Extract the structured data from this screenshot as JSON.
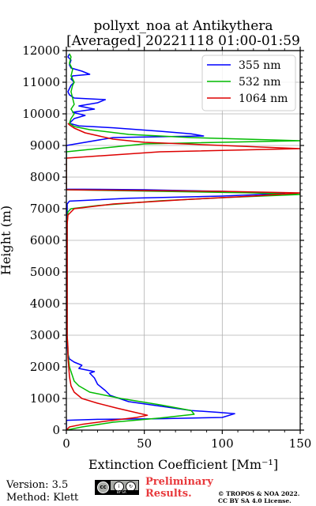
{
  "chart_data": {
    "type": "line",
    "title": "pollyxt_noa at Antikythera",
    "subtitle": "[Averaged] 20221118 01:00-01:59",
    "xlabel": "Extinction Coefficient [Mm⁻¹]",
    "ylabel": "Height (m)",
    "xlim": [
      0,
      150
    ],
    "ylim": [
      0,
      12000
    ],
    "xticks": [
      0,
      50,
      100,
      150
    ],
    "yticks": [
      0,
      1000,
      2000,
      3000,
      4000,
      5000,
      6000,
      7000,
      8000,
      9000,
      10000,
      11000,
      12000
    ],
    "grid": true,
    "legend_position": "top-right",
    "series": [
      {
        "name": "355 nm",
        "color": "#0000ff",
        "points": [
          [
            0,
            0
          ],
          [
            0,
            310
          ],
          [
            20,
            340
          ],
          [
            60,
            360
          ],
          [
            100,
            400
          ],
          [
            108,
            520
          ],
          [
            98,
            560
          ],
          [
            80,
            620
          ],
          [
            60,
            760
          ],
          [
            40,
            900
          ],
          [
            28,
            1100
          ],
          [
            25,
            1250
          ],
          [
            20,
            1450
          ],
          [
            18,
            1650
          ],
          [
            15,
            1800
          ],
          [
            18,
            1850
          ],
          [
            8,
            1950
          ],
          [
            10,
            2050
          ],
          [
            5,
            2150
          ],
          [
            2,
            2250
          ],
          [
            1,
            2400
          ],
          [
            0.5,
            2700
          ],
          [
            0.5,
            3500
          ],
          [
            0.5,
            5000
          ],
          [
            0.5,
            6500
          ],
          [
            0.5,
            7000
          ],
          [
            0.5,
            7150
          ],
          [
            2,
            7240
          ],
          [
            40,
            7330
          ],
          [
            100,
            7400
          ],
          [
            140,
            7480
          ],
          [
            100,
            7550
          ],
          [
            50,
            7600
          ],
          [
            0,
            7620
          ],
          [
            0,
            9000
          ],
          [
            30,
            9250
          ],
          [
            88,
            9300
          ],
          [
            80,
            9370
          ],
          [
            60,
            9450
          ],
          [
            30,
            9560
          ],
          [
            8,
            9620
          ],
          [
            2,
            9700
          ],
          [
            5,
            9850
          ],
          [
            12,
            9950
          ],
          [
            4,
            10050
          ],
          [
            18,
            10150
          ],
          [
            8,
            10250
          ],
          [
            20,
            10350
          ],
          [
            25,
            10450
          ],
          [
            5,
            10500
          ],
          [
            2,
            10600
          ],
          [
            1,
            10700
          ],
          [
            2,
            10800
          ],
          [
            3,
            10900
          ],
          [
            5,
            11000
          ],
          [
            3,
            11100
          ],
          [
            4,
            11200
          ],
          [
            15,
            11250
          ],
          [
            10,
            11350
          ],
          [
            3,
            11450
          ],
          [
            2,
            11550
          ],
          [
            3,
            11700
          ],
          [
            1,
            11800
          ],
          [
            2,
            11900
          ]
        ]
      },
      {
        "name": "532 nm",
        "color": "#00bb00",
        "points": [
          [
            0,
            0
          ],
          [
            10,
            100
          ],
          [
            30,
            250
          ],
          [
            60,
            380
          ],
          [
            82,
            500
          ],
          [
            80,
            620
          ],
          [
            60,
            800
          ],
          [
            35,
            1000
          ],
          [
            15,
            1200
          ],
          [
            8,
            1400
          ],
          [
            5,
            1550
          ],
          [
            4,
            1700
          ],
          [
            3,
            1850
          ],
          [
            2,
            2000
          ],
          [
            1.5,
            2200
          ],
          [
            1,
            2500
          ],
          [
            0.5,
            3000
          ],
          [
            0.5,
            4000
          ],
          [
            0.5,
            5000
          ],
          [
            0.5,
            6000
          ],
          [
            0.5,
            6500
          ],
          [
            1,
            6900
          ],
          [
            3,
            7000
          ],
          [
            20,
            7100
          ],
          [
            60,
            7250
          ],
          [
            100,
            7350
          ],
          [
            150,
            7450
          ],
          [
            120,
            7500
          ],
          [
            60,
            7550
          ],
          [
            0,
            7600
          ],
          [
            0,
            8800
          ],
          [
            50,
            9050
          ],
          [
            150,
            9150
          ],
          [
            80,
            9250
          ],
          [
            40,
            9350
          ],
          [
            15,
            9500
          ],
          [
            5,
            9600
          ],
          [
            2,
            9700
          ],
          [
            3,
            9850
          ],
          [
            5,
            10000
          ],
          [
            3,
            10150
          ],
          [
            5,
            10300
          ],
          [
            4,
            10500
          ],
          [
            3,
            10700
          ],
          [
            4,
            10900
          ],
          [
            5,
            11000
          ],
          [
            3,
            11200
          ],
          [
            4,
            11400
          ],
          [
            2,
            11600
          ],
          [
            3,
            11800
          ],
          [
            2,
            11900
          ]
        ]
      },
      {
        "name": "1064 nm",
        "color": "#dd0000",
        "points": [
          [
            0,
            0
          ],
          [
            2,
            100
          ],
          [
            10,
            180
          ],
          [
            25,
            280
          ],
          [
            45,
            400
          ],
          [
            52,
            470
          ],
          [
            45,
            550
          ],
          [
            32,
            700
          ],
          [
            20,
            850
          ],
          [
            10,
            1000
          ],
          [
            5,
            1200
          ],
          [
            3,
            1400
          ],
          [
            2,
            1700
          ],
          [
            1.5,
            2000
          ],
          [
            1,
            2300
          ],
          [
            1,
            2600
          ],
          [
            0.5,
            3000
          ],
          [
            0.5,
            4000
          ],
          [
            0.5,
            5000
          ],
          [
            0.5,
            6000
          ],
          [
            0.5,
            6500
          ],
          [
            1,
            6800
          ],
          [
            5,
            7000
          ],
          [
            30,
            7150
          ],
          [
            80,
            7300
          ],
          [
            120,
            7400
          ],
          [
            150,
            7500
          ],
          [
            100,
            7550
          ],
          [
            0,
            7600
          ],
          [
            0,
            8600
          ],
          [
            60,
            8800
          ],
          [
            150,
            8900
          ],
          [
            100,
            9000
          ],
          [
            50,
            9100
          ],
          [
            30,
            9200
          ],
          [
            12,
            9400
          ],
          [
            5,
            9550
          ],
          [
            2,
            9650
          ],
          [
            1,
            9700
          ]
        ]
      }
    ]
  },
  "footer": {
    "version": "Version: 3.5",
    "method": "Method: Klett",
    "preliminary": "Preliminary Results.",
    "license_line1": "© TROPOS & NOA 2022.",
    "license_line2": "CC BY SA 4.0 License."
  },
  "cc_badge": {
    "cc": "cc",
    "by": "i",
    "sa": "↻",
    "strip": "BY   SA"
  }
}
